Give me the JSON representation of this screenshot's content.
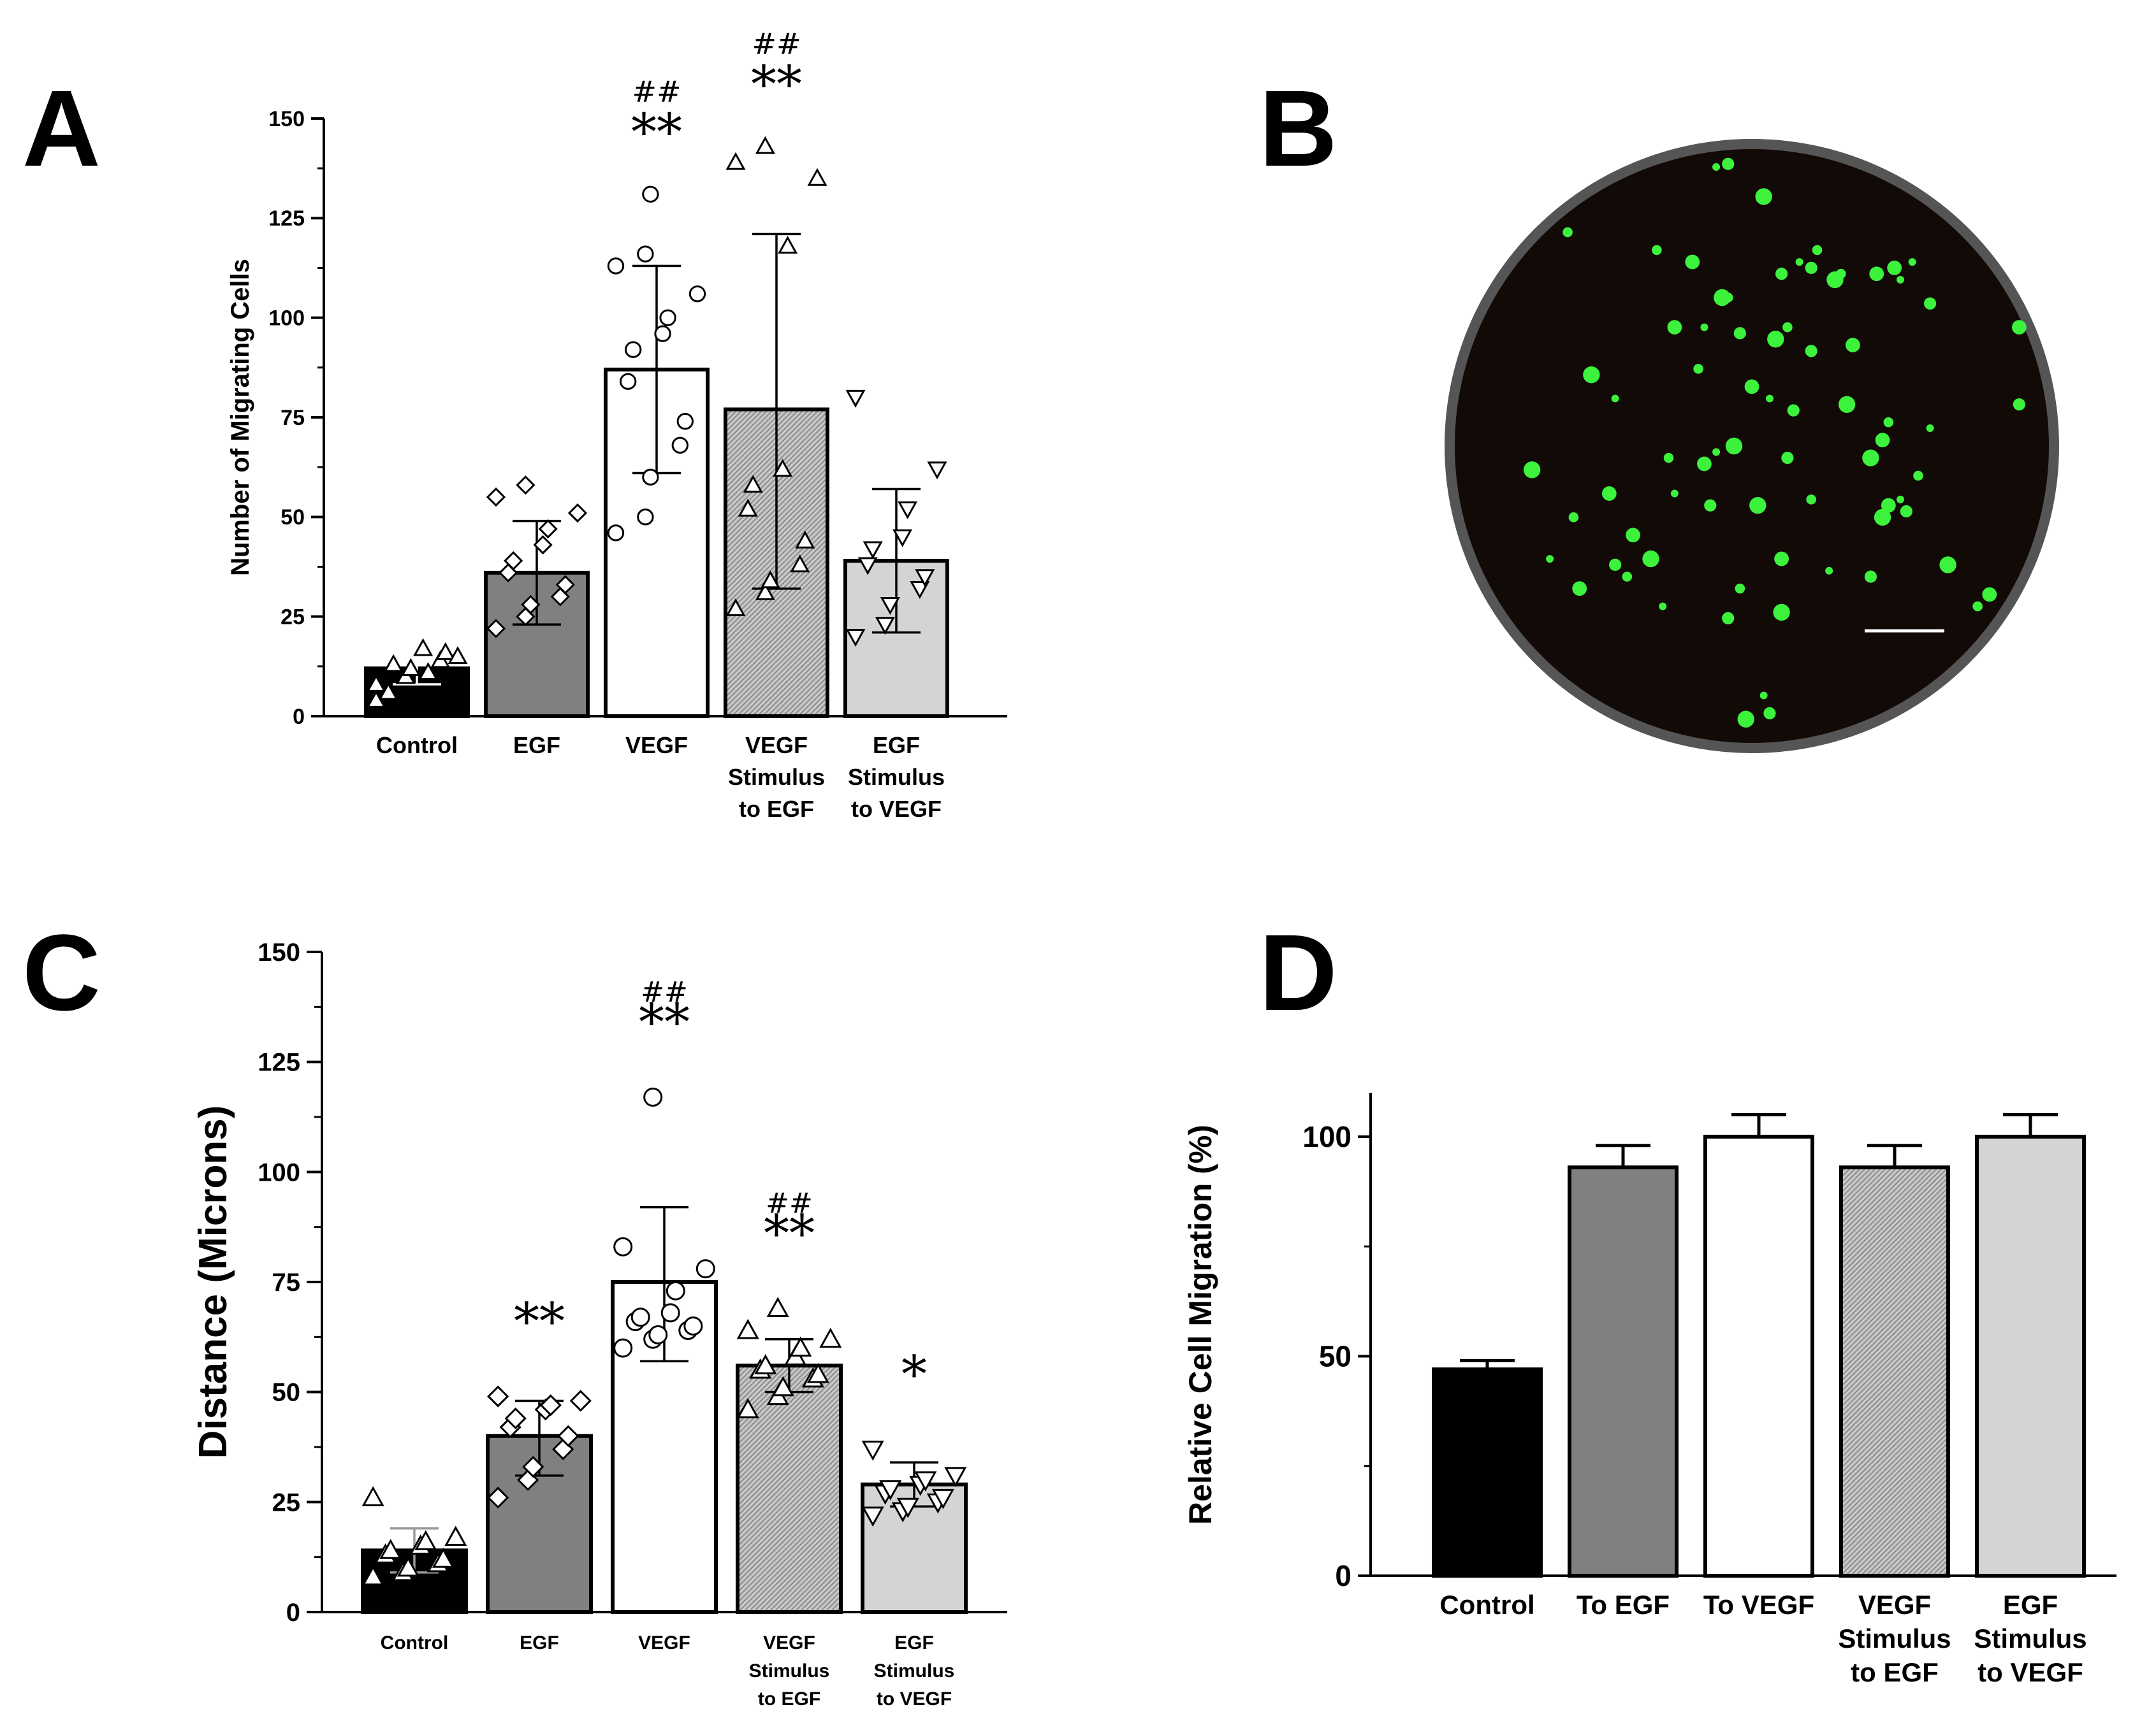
{
  "colors": {
    "black": "#000000",
    "dark_gray": "#808080",
    "white": "#ffffff",
    "hatched": "#bdbdbd",
    "light_gray": "#d4d4d4",
    "cell_green": "#3cf23c",
    "dish_background": "#140c08",
    "dish_rim": "#4a4a4a"
  },
  "panels": {
    "a": {
      "letter": "A"
    },
    "b": {
      "letter": "B"
    },
    "c": {
      "letter": "C"
    },
    "d": {
      "letter": "D"
    }
  },
  "chart_data": [
    {
      "id": "A",
      "type": "bar",
      "categories": [
        [
          "Control"
        ],
        [
          "EGF"
        ],
        [
          "VEGF"
        ],
        [
          "VEGF",
          "Stimulus",
          "to EGF"
        ],
        [
          "EGF",
          "Stimulus",
          "to VEGF"
        ]
      ],
      "values": [
        12,
        36,
        87,
        77,
        39
      ],
      "error_bars": [
        [
          8,
          16
        ],
        [
          23,
          49
        ],
        [
          61,
          113
        ],
        [
          32,
          121
        ],
        [
          21,
          57
        ]
      ],
      "fills": [
        "black",
        "dark_gray",
        "white",
        "hatched",
        "light_gray"
      ],
      "point_markers": [
        "triangle-up",
        "diamond",
        "circle",
        "triangle-up",
        "triangle-down"
      ],
      "points": [
        [
          8,
          10,
          12,
          14,
          16,
          6,
          13,
          17,
          11,
          15,
          4
        ],
        [
          22,
          25,
          28,
          30,
          33,
          36,
          39,
          43,
          47,
          51,
          55,
          58
        ],
        [
          46,
          50,
          60,
          68,
          74,
          84,
          92,
          96,
          100,
          106,
          113,
          116,
          131
        ],
        [
          27,
          31,
          34,
          38,
          44,
          52,
          58,
          62,
          118,
          135,
          139,
          143
        ],
        [
          20,
          23,
          28,
          32,
          35,
          38,
          42,
          45,
          52,
          62,
          80
        ]
      ],
      "annotations": [
        {
          "index": 2,
          "lines": [
            "##",
            "**"
          ]
        },
        {
          "index": 3,
          "lines": [
            "##",
            "**"
          ]
        }
      ],
      "ylabel": "Number of Migrating Cells",
      "ylim": [
        0,
        150
      ],
      "yticks": [
        0,
        25,
        50,
        75,
        100,
        125,
        150
      ],
      "grid": false
    },
    {
      "id": "C",
      "type": "bar",
      "categories": [
        [
          "Control"
        ],
        [
          "EGF"
        ],
        [
          "VEGF"
        ],
        [
          "VEGF",
          "Stimulus",
          "to EGF"
        ],
        [
          "EGF",
          "Stimulus",
          "to VEGF"
        ]
      ],
      "values": [
        14,
        40,
        75,
        56,
        29
      ],
      "error_bars": [
        [
          9,
          19
        ],
        [
          31,
          48
        ],
        [
          57,
          92
        ],
        [
          50,
          62
        ],
        [
          24,
          34
        ]
      ],
      "fills": [
        "black",
        "dark_gray",
        "white",
        "hatched",
        "light_gray"
      ],
      "point_markers": [
        "triangle-up",
        "diamond",
        "circle",
        "triangle-up",
        "triangle-down"
      ],
      "points": [
        [
          8,
          9,
          10,
          11,
          12,
          13,
          14,
          15,
          16,
          17,
          26
        ],
        [
          26,
          30,
          33,
          37,
          40,
          42,
          44,
          46,
          47,
          48,
          49
        ],
        [
          60,
          62,
          63,
          64,
          65,
          66,
          67,
          68,
          73,
          78,
          83,
          117
        ],
        [
          46,
          49,
          51,
          53,
          54,
          55,
          56,
          58,
          60,
          62,
          64,
          69
        ],
        [
          22,
          23,
          24,
          25,
          26,
          27,
          28,
          29,
          30,
          31,
          37
        ]
      ],
      "annotations": [
        {
          "index": 1,
          "lines": [
            "**"
          ]
        },
        {
          "index": 2,
          "lines": [
            "##",
            "**"
          ]
        },
        {
          "index": 3,
          "lines": [
            "##",
            "**"
          ]
        },
        {
          "index": 4,
          "lines": [
            "*"
          ]
        }
      ],
      "ylabel": "Distance (Microns)",
      "ylim": [
        0,
        150
      ],
      "yticks": [
        0,
        25,
        50,
        75,
        100,
        125,
        150
      ],
      "grid": false
    },
    {
      "id": "D",
      "type": "bar",
      "categories": [
        [
          "Control"
        ],
        [
          "To EGF"
        ],
        [
          "To VEGF"
        ],
        [
          "VEGF",
          "Stimulus",
          "to EGF"
        ],
        [
          "EGF",
          "Stimulus",
          "to VEGF"
        ]
      ],
      "values": [
        47,
        93,
        100,
        93,
        100
      ],
      "error_upper": [
        49,
        98,
        105,
        98,
        105
      ],
      "fills": [
        "black",
        "dark_gray",
        "white",
        "hatched",
        "light_gray"
      ],
      "ylabel": "Relative Cell Migration (%)",
      "ylim": [
        0,
        110
      ],
      "yticks": [
        0,
        50,
        100
      ],
      "grid": false
    }
  ],
  "micrograph": {
    "cells": [
      [
        0.44,
        0.03
      ],
      [
        0.46,
        0.025
      ],
      [
        0.52,
        0.08
      ],
      [
        0.34,
        0.17
      ],
      [
        0.4,
        0.19
      ],
      [
        0.58,
        0.19
      ],
      [
        0.6,
        0.2
      ],
      [
        0.64,
        0.22
      ],
      [
        0.65,
        0.21
      ],
      [
        0.74,
        0.2
      ],
      [
        0.77,
        0.19
      ],
      [
        0.55,
        0.21
      ],
      [
        0.45,
        0.25
      ],
      [
        0.46,
        0.25
      ],
      [
        0.37,
        0.3
      ],
      [
        0.42,
        0.3
      ],
      [
        0.48,
        0.31
      ],
      [
        0.54,
        0.32
      ],
      [
        0.56,
        0.3
      ],
      [
        0.67,
        0.33
      ],
      [
        0.27,
        0.42
      ],
      [
        0.6,
        0.34
      ],
      [
        0.23,
        0.38
      ],
      [
        0.41,
        0.37
      ],
      [
        0.5,
        0.4
      ],
      [
        0.53,
        0.42
      ],
      [
        0.57,
        0.44
      ],
      [
        0.66,
        0.43
      ],
      [
        0.73,
        0.46
      ],
      [
        0.72,
        0.49
      ],
      [
        0.8,
        0.47
      ],
      [
        0.95,
        0.43
      ],
      [
        0.47,
        0.5
      ],
      [
        0.36,
        0.52
      ],
      [
        0.42,
        0.53
      ],
      [
        0.44,
        0.51
      ],
      [
        0.56,
        0.52
      ],
      [
        0.7,
        0.52
      ],
      [
        0.78,
        0.55
      ],
      [
        0.26,
        0.58
      ],
      [
        0.37,
        0.58
      ],
      [
        0.43,
        0.6
      ],
      [
        0.51,
        0.6
      ],
      [
        0.6,
        0.59
      ],
      [
        0.73,
        0.6
      ],
      [
        0.75,
        0.59
      ],
      [
        0.76,
        0.61
      ],
      [
        0.72,
        0.62
      ],
      [
        0.2,
        0.62
      ],
      [
        0.3,
        0.65
      ],
      [
        0.16,
        0.69
      ],
      [
        0.27,
        0.7
      ],
      [
        0.33,
        0.69
      ],
      [
        0.29,
        0.72
      ],
      [
        0.55,
        0.69
      ],
      [
        0.63,
        0.71
      ],
      [
        0.7,
        0.72
      ],
      [
        0.83,
        0.7
      ],
      [
        0.48,
        0.74
      ],
      [
        0.21,
        0.74
      ],
      [
        0.35,
        0.77
      ],
      [
        0.46,
        0.79
      ],
      [
        0.55,
        0.78
      ],
      [
        0.88,
        0.77
      ],
      [
        0.9,
        0.75
      ],
      [
        0.52,
        0.92
      ],
      [
        0.53,
        0.95
      ],
      [
        0.49,
        0.96
      ],
      [
        0.61,
        0.17
      ],
      [
        0.71,
        0.21
      ],
      [
        0.75,
        0.22
      ],
      [
        0.8,
        0.26
      ],
      [
        0.13,
        0.54
      ],
      [
        0.19,
        0.14
      ],
      [
        0.95,
        0.3
      ]
    ]
  }
}
